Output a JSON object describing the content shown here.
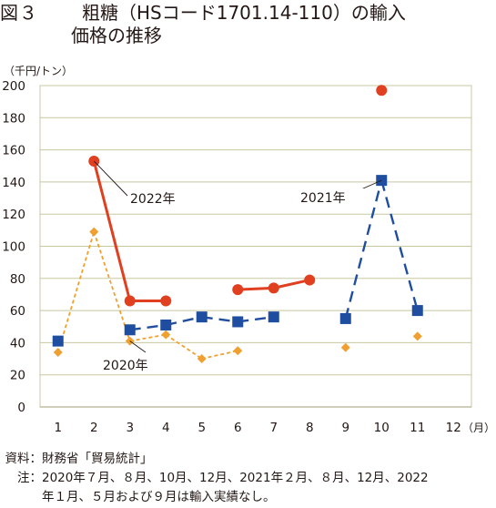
{
  "title": {
    "figure_label": "図３",
    "line1": "粗糖（HSコード1701.14-110）の輸入",
    "line2": "価格の推移"
  },
  "chart_data": {
    "type": "line",
    "ylabel": "（千円/トン）",
    "xlabel": "（月）",
    "categories": [
      "1",
      "2",
      "3",
      "4",
      "5",
      "6",
      "7",
      "8",
      "9",
      "10",
      "11",
      "12"
    ],
    "ylim": [
      0,
      200
    ],
    "yticks": [
      0,
      20,
      40,
      60,
      80,
      100,
      120,
      140,
      160,
      180,
      200
    ],
    "grid": "horizontal",
    "series": [
      {
        "name": "2020年",
        "color": "#f0a030",
        "line": "dotted",
        "marker": "diamond",
        "values": [
          34,
          109,
          41,
          45,
          30,
          35,
          null,
          null,
          37,
          null,
          44,
          null
        ]
      },
      {
        "name": "2021年",
        "color": "#1f4ea0",
        "line": "dashed",
        "marker": "square",
        "values": [
          41,
          null,
          48,
          51,
          56,
          53,
          56,
          null,
          55,
          141,
          60,
          null
        ]
      },
      {
        "name": "2022年",
        "color": "#e04020",
        "line": "solid",
        "marker": "circle",
        "values": [
          null,
          153,
          66,
          66,
          null,
          73,
          74,
          79,
          null,
          197,
          null,
          null
        ]
      }
    ]
  },
  "footnotes": {
    "source_label": "資料：",
    "source_text": "財務省「貿易統計」",
    "note_label": "注：",
    "note_line1": "2020年７月、８月、10月、12月、2021年２月、８月、12月、2022",
    "note_line2": "年１月、５月および９月は輸入実績なし。"
  }
}
